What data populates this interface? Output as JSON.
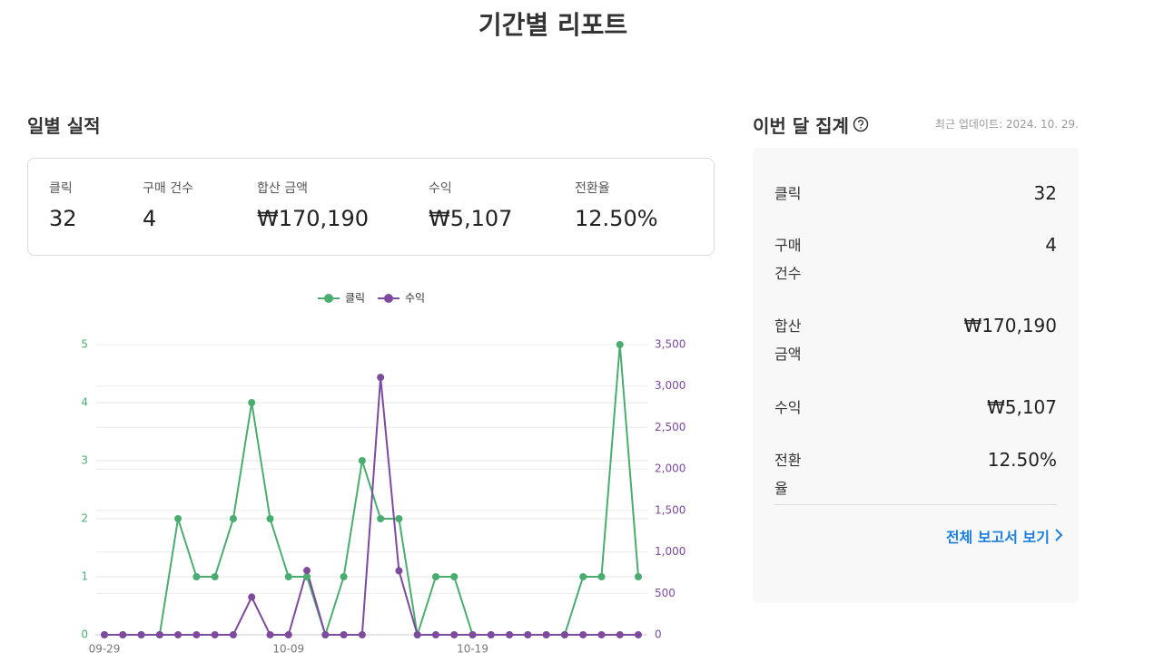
{
  "page_title": "기간별 리포트",
  "daily": {
    "title": "일별 실적",
    "stats": [
      {
        "label": "클릭",
        "value": "32"
      },
      {
        "label": "구매 건수",
        "value": "4"
      },
      {
        "label": "합산 금액",
        "value": "₩170,190"
      },
      {
        "label": "수익",
        "value": "₩5,107"
      },
      {
        "label": "전환율",
        "value": "12.50%"
      }
    ]
  },
  "monthly": {
    "title": "이번 달 집계",
    "updated": "최근 업데이트: 2024. 10. 29.",
    "rows": [
      {
        "label": "클릭",
        "value": "32"
      },
      {
        "label": "구매 건수",
        "value": "4"
      },
      {
        "label": "합산 금액",
        "value": "₩170,190"
      },
      {
        "label": "수익",
        "value": "₩5,107"
      },
      {
        "label": "전환율",
        "value": "12.50%"
      }
    ],
    "link": "전체 보고서 보기"
  },
  "chart_data": {
    "type": "line",
    "categories": [
      "09-29",
      null,
      null,
      null,
      null,
      null,
      null,
      null,
      null,
      null,
      "10-09",
      null,
      null,
      null,
      null,
      null,
      null,
      null,
      null,
      null,
      "10-19",
      null,
      null,
      null,
      null,
      null,
      null,
      null,
      null,
      null
    ],
    "series": [
      {
        "name": "클릭",
        "color": "#4aad6f",
        "values": [
          0,
          0,
          0,
          0,
          2,
          1,
          1,
          2,
          4,
          2,
          1,
          1,
          0,
          1,
          3,
          2,
          2,
          0,
          1,
          1,
          0,
          0,
          0,
          0,
          0,
          0,
          1,
          1,
          5,
          1
        ]
      },
      {
        "name": "수익",
        "color": "#7d4a9e",
        "axis": "y2",
        "values": [
          0,
          0,
          0,
          0,
          0,
          0,
          0,
          0,
          455,
          0,
          0,
          775,
          0,
          0,
          0,
          3105,
          772,
          0,
          0,
          0,
          0,
          0,
          0,
          0,
          0,
          0,
          0,
          0,
          0,
          0
        ]
      }
    ],
    "ylim": [
      0,
      5
    ],
    "yticks": [
      0,
      1,
      2,
      3,
      4,
      5
    ],
    "y2lim": [
      0,
      3500
    ],
    "y2ticks": [
      0,
      500,
      {
        "value": 1000,
        "label": "1,000"
      },
      {
        "value": 1500,
        "label": "1,500"
      },
      {
        "value": 2000,
        "label": "2,000"
      },
      {
        "value": 2500,
        "label": "2,500"
      },
      {
        "value": 3000,
        "label": "3,000"
      },
      {
        "value": 3500,
        "label": "3,500"
      }
    ],
    "grid": true,
    "legend": "top"
  }
}
